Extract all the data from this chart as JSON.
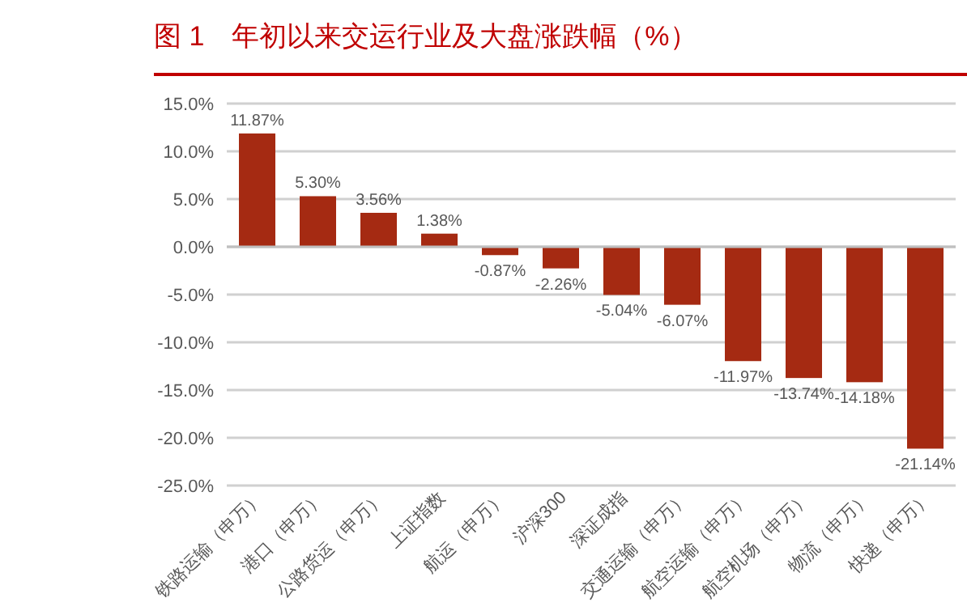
{
  "chart_data": {
    "type": "bar",
    "title": "图 1　年初以来交运行业及大盘涨跌幅（%）",
    "categories": [
      "铁路运输（申万）",
      "港口（申万）",
      "公路货运（申万）",
      "上证指数",
      "航运（申万）",
      "沪深300",
      "深证成指",
      "交通运输（申万）",
      "航空运输（申万）",
      "航空机场（申万）",
      "物流（申万）",
      "快递（申万）"
    ],
    "values": [
      11.87,
      5.3,
      3.56,
      1.38,
      -0.87,
      -2.26,
      -5.04,
      -6.07,
      -11.97,
      -13.74,
      -14.18,
      -21.14
    ],
    "value_labels": [
      "11.87%",
      "5.30%",
      "3.56%",
      "1.38%",
      "-0.87%",
      "-2.26%",
      "-5.04%",
      "-6.07%",
      "-11.97%",
      "-13.74%",
      "-14.18%",
      "-21.14%"
    ],
    "color": "#a52a12",
    "ylim": [
      -25,
      15
    ],
    "yticks": [
      {
        "value": -25,
        "label": "-25.0%"
      },
      {
        "value": -20,
        "label": "-20.0%"
      },
      {
        "value": -15,
        "label": "-15.0%"
      },
      {
        "value": -10,
        "label": "-10.0%"
      },
      {
        "value": -5,
        "label": "-5.0%"
      },
      {
        "value": 0,
        "label": "0.0%"
      },
      {
        "value": 5,
        "label": "5.0%"
      },
      {
        "value": 10,
        "label": "10.0%"
      },
      {
        "value": 15,
        "label": "15.0%"
      }
    ],
    "grid": "y"
  }
}
